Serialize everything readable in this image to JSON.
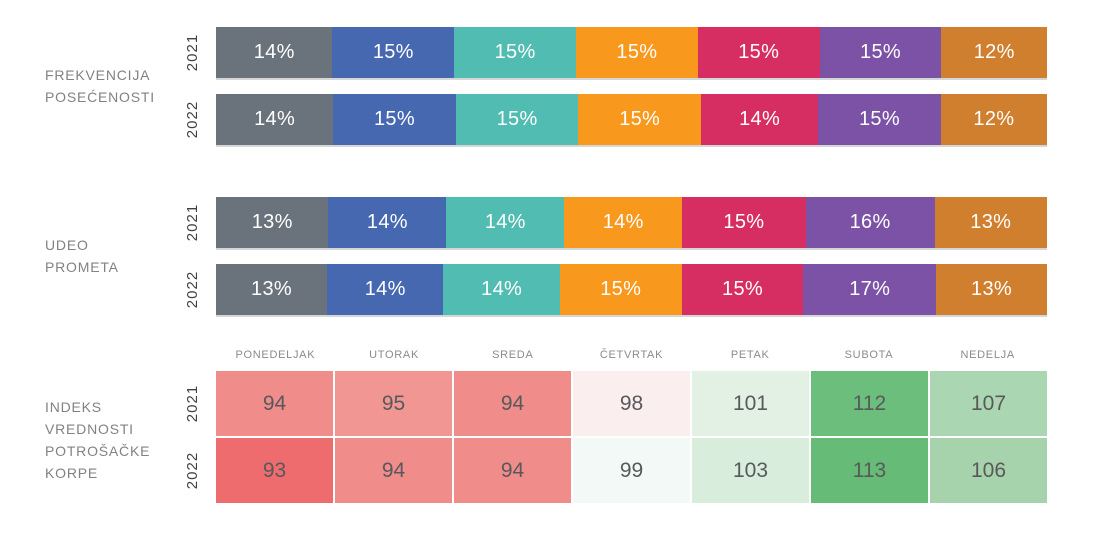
{
  "days": [
    "PONEDELJAK",
    "UTORAK",
    "SREDA",
    "ČETVRTAK",
    "PETAK",
    "SUBOTA",
    "NEDELJA"
  ],
  "bar_palette": [
    "#6A737B",
    "#4568B0",
    "#50BCB2",
    "#F8981D",
    "#D62E63",
    "#7B52A5",
    "#D07F2E"
  ],
  "colors": {
    "bar_label_text": "#FFFFFF",
    "heatmap_value_text": "#58595B",
    "section_label_text": "#808285",
    "year_label_text": "#414042",
    "day_header_text": "#898B8E",
    "bar_bottom_shadow": "#D5D6D8"
  },
  "sections": [
    {
      "id": "frekvencija-posecenosti",
      "label_lines": [
        "FREKVENCIJA",
        "POSEĆENOSTI"
      ],
      "unit": "%",
      "rows": [
        {
          "year": "2021",
          "values": [
            14,
            15,
            15,
            15,
            15,
            15,
            12
          ]
        },
        {
          "year": "2022",
          "values": [
            14,
            15,
            15,
            15,
            14,
            15,
            12
          ]
        }
      ]
    },
    {
      "id": "udeo-prometa",
      "label_lines": [
        "UDEO",
        "PROMETA"
      ],
      "unit": "%",
      "rows": [
        {
          "year": "2021",
          "values": [
            13,
            14,
            14,
            14,
            15,
            16,
            13
          ]
        },
        {
          "year": "2022",
          "values": [
            13,
            14,
            14,
            15,
            15,
            17,
            13
          ]
        }
      ]
    }
  ],
  "heatmap": {
    "id": "indeks-vrednosti-potrosacke-korpe",
    "label_lines": [
      "INDEKS",
      "VREDNOSTI",
      "POTROŠAČKE",
      "KORPE"
    ],
    "columns": [
      "PONEDELJAK",
      "UTORAK",
      "SREDA",
      "ČETVRTAK",
      "PETAK",
      "SUBOTA",
      "NEDELJA"
    ],
    "rows": [
      {
        "year": "2021",
        "values": [
          94,
          95,
          94,
          98,
          101,
          112,
          107
        ],
        "cell_colors": [
          "#F08C8A",
          "#F29693",
          "#F08C8A",
          "#FBEEEF",
          "#E3F1E5",
          "#6CBE7D",
          "#AAD6B1"
        ]
      },
      {
        "year": "2022",
        "values": [
          93,
          94,
          94,
          99,
          103,
          113,
          106
        ],
        "cell_colors": [
          "#EE6B6E",
          "#F08C8A",
          "#F08C8A",
          "#F3F9F7",
          "#D9EDDC",
          "#66BB77",
          "#A6D3AC"
        ]
      }
    ]
  },
  "chart_data": [
    {
      "type": "bar",
      "subtype": "horizontal-stacked-100pct",
      "title": "FREKVENCIJA POSEĆENOSTI",
      "categories": [
        "PONEDELJAK",
        "UTORAK",
        "SREDA",
        "ČETVRTAK",
        "PETAK",
        "SUBOTA",
        "NEDELJA"
      ],
      "series": [
        {
          "name": "2021",
          "values": [
            14,
            15,
            15,
            15,
            15,
            15,
            12
          ]
        },
        {
          "name": "2022",
          "values": [
            14,
            15,
            15,
            15,
            14,
            15,
            12
          ]
        }
      ],
      "unit": "%",
      "legend_position": "none",
      "grid": false
    },
    {
      "type": "bar",
      "subtype": "horizontal-stacked-100pct",
      "title": "UDEO PROMETA",
      "categories": [
        "PONEDELJAK",
        "UTORAK",
        "SREDA",
        "ČETVRTAK",
        "PETAK",
        "SUBOTA",
        "NEDELJA"
      ],
      "series": [
        {
          "name": "2021",
          "values": [
            13,
            14,
            14,
            14,
            15,
            16,
            13
          ]
        },
        {
          "name": "2022",
          "values": [
            13,
            14,
            14,
            15,
            15,
            17,
            13
          ]
        }
      ],
      "unit": "%",
      "legend_position": "none",
      "grid": false
    },
    {
      "type": "heatmap",
      "title": "INDEKS VREDNOSTI POTROŠAČKE KORPE",
      "columns": [
        "PONEDELJAK",
        "UTORAK",
        "SREDA",
        "ČETVRTAK",
        "PETAK",
        "SUBOTA",
        "NEDELJA"
      ],
      "rows": [
        {
          "name": "2021",
          "values": [
            94,
            95,
            94,
            98,
            101,
            112,
            107
          ]
        },
        {
          "name": "2022",
          "values": [
            93,
            94,
            94,
            99,
            103,
            113,
            106
          ]
        }
      ],
      "color_scale": "red(low, <100) to green(high, >100), neutral white near 100"
    }
  ]
}
